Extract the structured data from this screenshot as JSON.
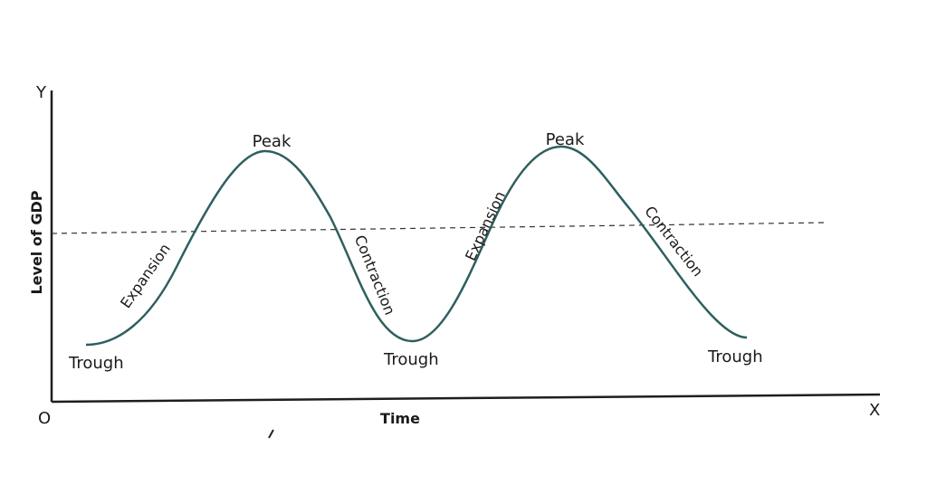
{
  "axes": {
    "y_letter": "Y",
    "x_letter": "X",
    "origin": "O",
    "y_title": "Level of GDP",
    "x_title": "Time"
  },
  "labels": {
    "peak_1": "Peak",
    "peak_2": "Peak",
    "trough_1": "Trough",
    "trough_2": "Trough",
    "trough_3": "Trough",
    "expansion_1": "Expansion",
    "expansion_2": "Expansion",
    "contraction_1": "Contraction",
    "contraction_2": "Contraction"
  },
  "colors": {
    "curve": "#2f5f5f",
    "axes": "#1e1e1e",
    "trend_line": "#333333"
  }
}
